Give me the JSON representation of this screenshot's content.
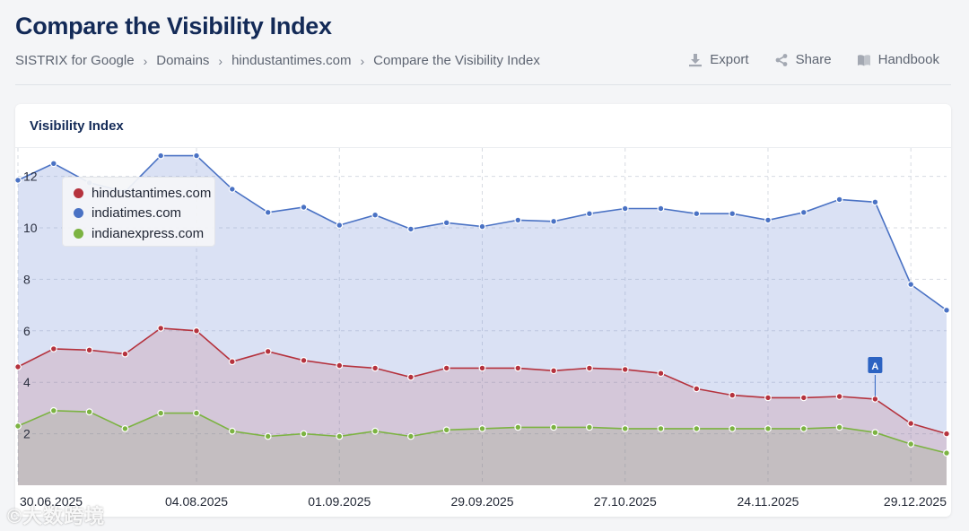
{
  "page": {
    "title": "Compare the Visibility Index",
    "breadcrumb": [
      "SISTRIX for Google",
      "Domains",
      "hindustantimes.com",
      "Compare the Visibility Index"
    ],
    "actions": {
      "export": "Export",
      "share": "Share",
      "handbook": "Handbook"
    }
  },
  "card": {
    "title": "Visibility Index"
  },
  "watermark": "大数跨境",
  "colors": {
    "hindustantimes": "#b5323d",
    "indiatimes": "#4a72c4",
    "indianexpress": "#7cb342"
  },
  "chart_data": {
    "type": "area",
    "title": "Visibility Index",
    "ylim": [
      0,
      13
    ],
    "yticks": [
      2,
      4,
      6,
      8,
      10,
      12
    ],
    "x_tick_labels": [
      "30.06.2025",
      "04.08.2025",
      "01.09.2025",
      "29.09.2025",
      "27.10.2025",
      "24.11.2025",
      "29.12.2025"
    ],
    "x_tick_indices": [
      0,
      5,
      9,
      13,
      17,
      21,
      25
    ],
    "annotation": {
      "label": "A",
      "index": 24
    },
    "series": [
      {
        "name": "indiatimes.com",
        "key": "indiatimes",
        "values": [
          11.85,
          12.5,
          11.75,
          11.4,
          12.8,
          12.8,
          11.5,
          10.6,
          10.8,
          10.1,
          10.5,
          9.95,
          10.2,
          10.05,
          10.3,
          10.25,
          10.55,
          10.75,
          10.75,
          10.55,
          10.55,
          10.3,
          10.6,
          11.1,
          11.0,
          7.8,
          6.8
        ]
      },
      {
        "name": "hindustantimes.com",
        "key": "hindustantimes",
        "values": [
          4.6,
          5.3,
          5.25,
          5.1,
          6.1,
          6.0,
          4.8,
          5.2,
          4.85,
          4.65,
          4.55,
          4.2,
          4.55,
          4.55,
          4.55,
          4.45,
          4.55,
          4.5,
          4.35,
          3.75,
          3.5,
          3.4,
          3.4,
          3.45,
          3.35,
          2.4,
          2.0
        ]
      },
      {
        "name": "indianexpress.com",
        "key": "indianexpress",
        "values": [
          2.3,
          2.9,
          2.85,
          2.2,
          2.8,
          2.8,
          2.1,
          1.9,
          2.0,
          1.9,
          2.1,
          1.9,
          2.15,
          2.2,
          2.25,
          2.25,
          2.25,
          2.2,
          2.2,
          2.2,
          2.2,
          2.2,
          2.2,
          2.25,
          2.05,
          1.6,
          1.25
        ]
      }
    ],
    "legend": [
      "hindustantimes.com",
      "indiatimes.com",
      "indianexpress.com"
    ]
  }
}
